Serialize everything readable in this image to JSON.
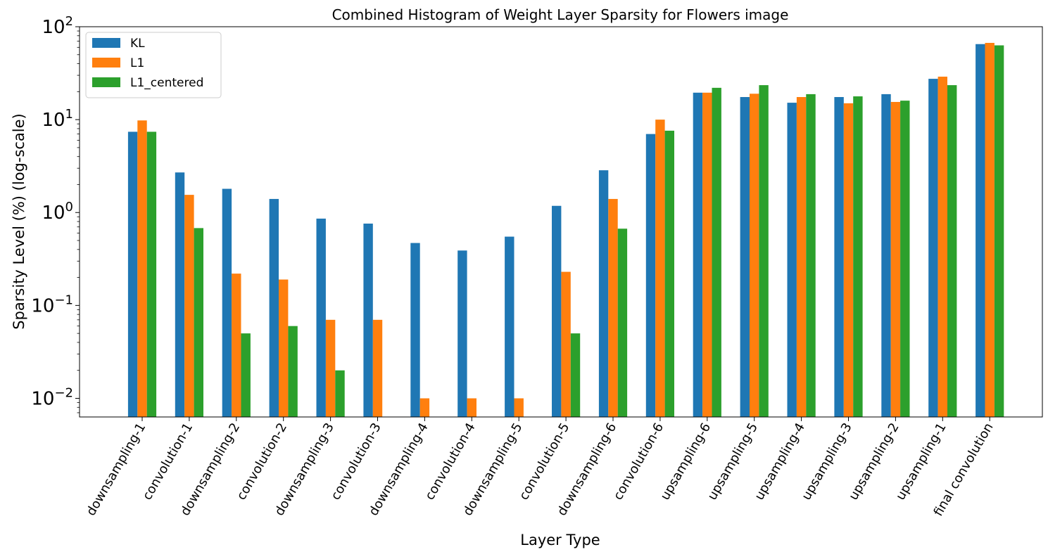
{
  "chart_data": {
    "type": "bar",
    "title": "Combined Histogram of Weight Layer Sparsity for Flowers image",
    "xlabel": "Layer Type",
    "ylabel": "Sparsity Level (%) (log-scale)",
    "yscale": "log",
    "ylim": [
      0.0063,
      100
    ],
    "yticks": [
      {
        "value": 0.01,
        "base": "10",
        "exp": "−2"
      },
      {
        "value": 0.1,
        "base": "10",
        "exp": "−1"
      },
      {
        "value": 1,
        "base": "10",
        "exp": "0"
      },
      {
        "value": 10,
        "base": "10",
        "exp": "1"
      },
      {
        "value": 100,
        "base": "10",
        "exp": "2"
      }
    ],
    "grid": false,
    "legend_position": "top-left",
    "categories": [
      "downsampling-1",
      "convolution-1",
      "downsampling-2",
      "convolution-2",
      "downsampling-3",
      "convolution-3",
      "downsampling-4",
      "convolution-4",
      "downsampling-5",
      "convolution-5",
      "downsampling-6",
      "convolution-6",
      "upsampling-6",
      "upsampling-5",
      "upsampling-4",
      "upsampling-3",
      "upsampling-2",
      "upsampling-1",
      "final convolution"
    ],
    "series": [
      {
        "name": "KL",
        "color": "#1f77b4",
        "values": [
          7.4,
          2.7,
          1.8,
          1.4,
          0.86,
          0.76,
          0.47,
          0.39,
          0.55,
          1.18,
          2.85,
          7.0,
          19.5,
          17.5,
          15.2,
          17.5,
          18.8,
          27.5,
          65.0
        ]
      },
      {
        "name": "L1",
        "color": "#ff7f0e",
        "values": [
          9.8,
          1.55,
          0.22,
          0.19,
          0.07,
          0.07,
          0.01,
          0.01,
          0.01,
          0.23,
          1.4,
          10.0,
          19.5,
          19.0,
          17.5,
          15.0,
          15.5,
          29.0,
          67.0
        ]
      },
      {
        "name": "L1_centered",
        "color": "#2ca02c",
        "values": [
          7.4,
          0.68,
          0.05,
          0.06,
          0.02,
          null,
          null,
          null,
          null,
          0.05,
          0.67,
          7.6,
          22.0,
          23.5,
          18.8,
          17.8,
          16.0,
          23.5,
          63.0
        ]
      }
    ]
  }
}
